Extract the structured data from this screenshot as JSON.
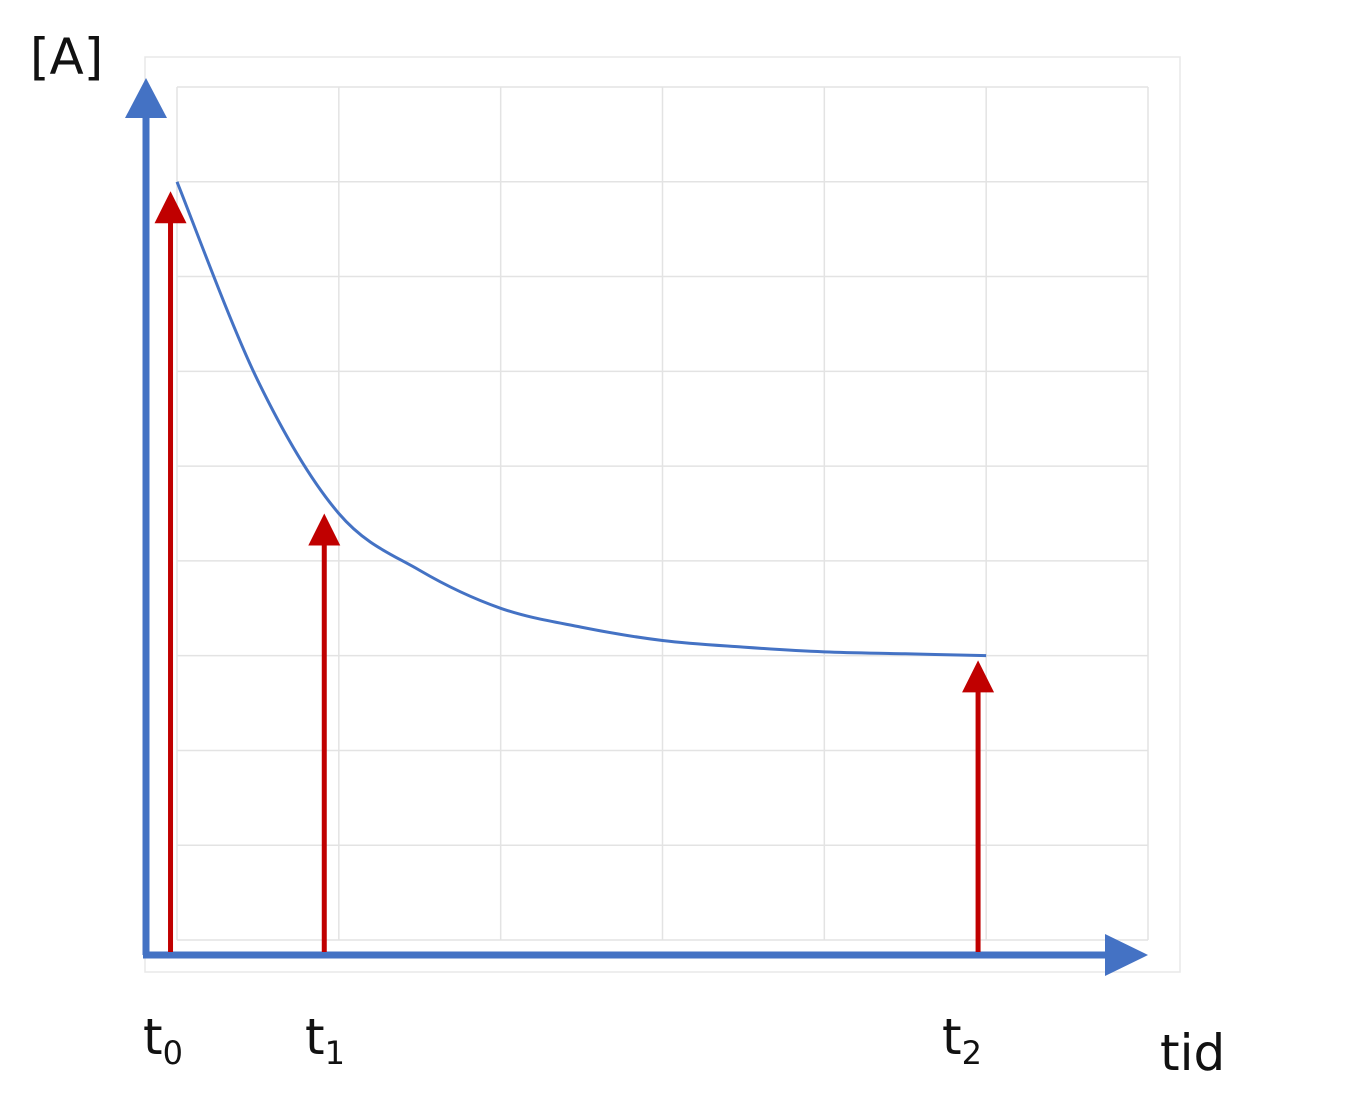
{
  "chart_data": {
    "type": "line",
    "title": "",
    "ylabel": "[A]",
    "xlabel": "tid",
    "grid": true,
    "xlim": [
      0,
      6
    ],
    "ylim": [
      0,
      9
    ],
    "colors": {
      "curve": "#4472C4",
      "axes": "#4472C4",
      "markers": "#C00000",
      "grid": "#e3e3e3"
    },
    "series": [
      {
        "x": [
          0,
          0.5,
          1,
          1.5,
          2,
          2.5,
          3,
          3.5,
          4,
          4.5,
          5
        ],
        "y": [
          8,
          5.9,
          4.5,
          3.9,
          3.5,
          3.3,
          3.16,
          3.09,
          3.04,
          3.02,
          3.0
        ]
      }
    ],
    "markers": [
      {
        "label": "t",
        "sub": "0",
        "x": -0.04,
        "y": 7.9
      },
      {
        "label": "t",
        "sub": "1",
        "x": 0.91,
        "y": 4.5
      },
      {
        "label": "t",
        "sub": "2",
        "x": 4.95,
        "y": 2.95
      }
    ]
  }
}
